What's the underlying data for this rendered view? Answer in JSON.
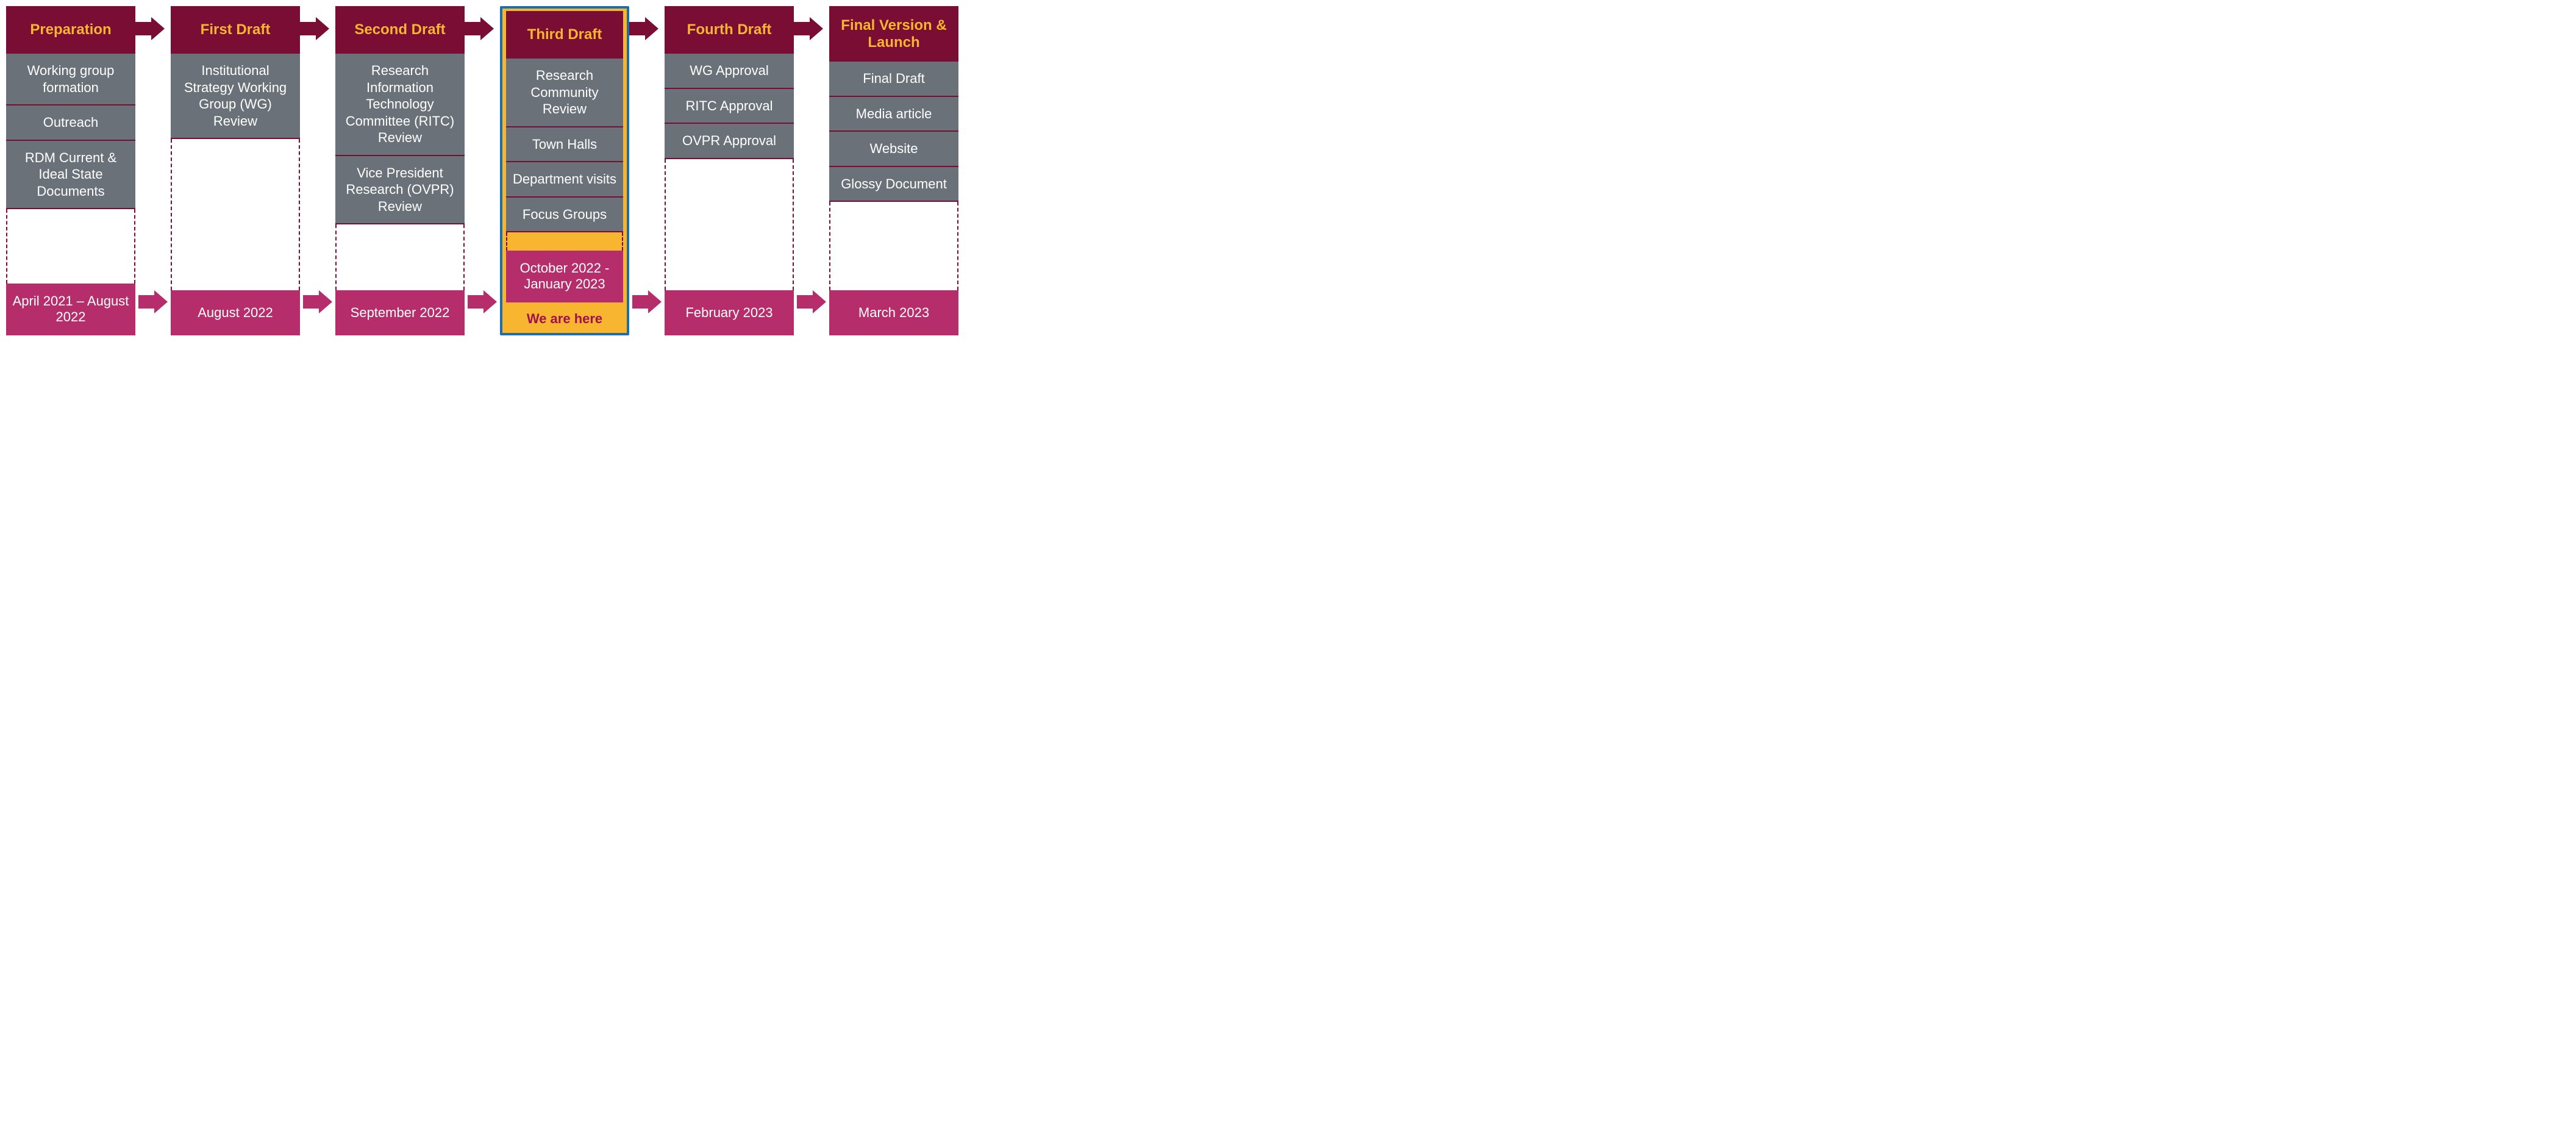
{
  "colors": {
    "header_bg": "#7a0d34",
    "header_text": "#f7b530",
    "item_bg": "#6a7179",
    "item_text": "#ffffff",
    "item_border": "#7a0d34",
    "dash_border": "#7a0d34",
    "date_bg": "#b52e6b",
    "date_text": "#ffffff",
    "arrow_top": "#7a0d34",
    "arrow_bottom": "#b52e6b",
    "highlight_bg": "#f7b530",
    "highlight_border": "#1e6ea8",
    "highlight_text": "#a1114c"
  },
  "font": {
    "header_size": 24,
    "header_weight": "bold",
    "item_size": 22,
    "date_size": 22,
    "here_size": 22
  },
  "we_are_here_label": "We are here",
  "stages": [
    {
      "title": "Preparation",
      "items": [
        "Working group formation",
        "Outreach",
        "RDM Current & Ideal State Documents"
      ],
      "date": "April 2021 – August 2022",
      "highlight": false
    },
    {
      "title": "First Draft",
      "items": [
        "Institutional Strategy Working Group (WG) Review"
      ],
      "date": "August 2022",
      "highlight": false
    },
    {
      "title": "Second Draft",
      "items": [
        "Research Information Technology Committee (RITC) Review",
        "Vice President Research (OVPR) Review"
      ],
      "date": "September 2022",
      "highlight": false
    },
    {
      "title": "Third Draft",
      "items": [
        "Research Community Review",
        "Town Halls",
        "Department visits",
        "Focus Groups"
      ],
      "date": "October 2022 - January 2023",
      "highlight": true
    },
    {
      "title": "Fourth Draft",
      "items": [
        "WG Approval",
        "RITC Approval",
        "OVPR Approval"
      ],
      "date": "February 2023",
      "highlight": false
    },
    {
      "title": "Final Version & Launch",
      "items": [
        "Final Draft",
        "Media article",
        "Website",
        "Glossy Document"
      ],
      "date": "March 2023",
      "highlight": false
    }
  ]
}
